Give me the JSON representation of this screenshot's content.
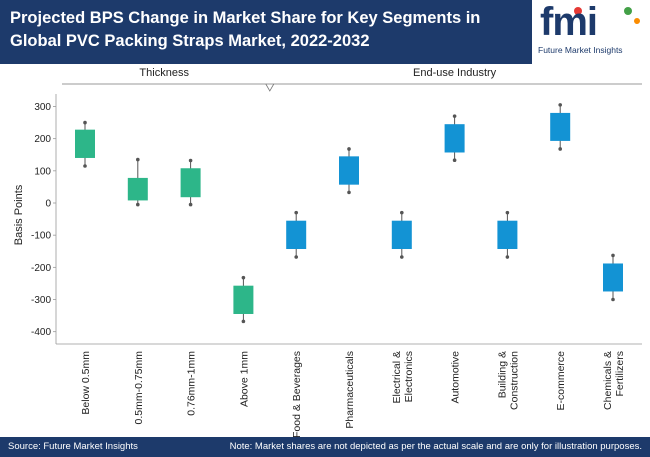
{
  "header": {
    "title": "Projected BPS Change in Market Share for Key Segments in Global PVC Packing Straps Market, 2022-2032"
  },
  "logo": {
    "word": "fmi",
    "sub": "Future Market Insights"
  },
  "footer": {
    "source": "Source: Future Market Insights",
    "note": "Note: Market shares are not depicted as per the actual scale and are only for illustration purposes."
  },
  "colors": {
    "header_bg": "#1d3a6b",
    "thickness": "#2db689",
    "end_use": "#1393d4",
    "whisker": "#555555"
  },
  "chart_data": {
    "type": "box",
    "ylabel": "Basis Points",
    "ylim": [
      -420,
      330
    ],
    "yticks": [
      300,
      200,
      100,
      0,
      -100,
      -200,
      -300,
      -400
    ],
    "groups": [
      {
        "label": "Thickness",
        "start": 0,
        "end": 3
      },
      {
        "label": "End-use Industry",
        "start": 4,
        "end": 10
      }
    ],
    "categories": [
      {
        "label": "Below 0.5mm",
        "group": "Thickness",
        "low": 115,
        "q1": 140,
        "q3": 228,
        "high": 250
      },
      {
        "label": "0.5mm-0.75mm",
        "group": "Thickness",
        "low": -5,
        "q1": 8,
        "q3": 78,
        "high": 135
      },
      {
        "label": "0.76mm-1mm",
        "group": "Thickness",
        "low": -5,
        "q1": 18,
        "q3": 108,
        "high": 132
      },
      {
        "label": "Above 1mm",
        "group": "Thickness",
        "low": -368,
        "q1": -345,
        "q3": -257,
        "high": -232
      },
      {
        "label": "Food & Beverages",
        "group": "End-use Industry",
        "low": -168,
        "q1": -143,
        "q3": -55,
        "high": -30
      },
      {
        "label": "Pharmaceuticals",
        "group": "End-use Industry",
        "low": 33,
        "q1": 57,
        "q3": 145,
        "high": 168
      },
      {
        "label": "Electrical & Electronics",
        "group": "End-use Industry",
        "low": -168,
        "q1": -143,
        "q3": -55,
        "high": -30
      },
      {
        "label": "Automotive",
        "group": "End-use Industry",
        "low": 133,
        "q1": 157,
        "q3": 245,
        "high": 270
      },
      {
        "label": "Building & Construction",
        "group": "End-use Industry",
        "low": -168,
        "q1": -143,
        "q3": -55,
        "high": -30
      },
      {
        "label": "E-commerce",
        "group": "End-use Industry",
        "low": 168,
        "q1": 193,
        "q3": 280,
        "high": 305
      },
      {
        "label": "Chemicals & Fertilizers",
        "group": "End-use Industry",
        "low": -300,
        "q1": -275,
        "q3": -188,
        "high": -163
      }
    ]
  }
}
